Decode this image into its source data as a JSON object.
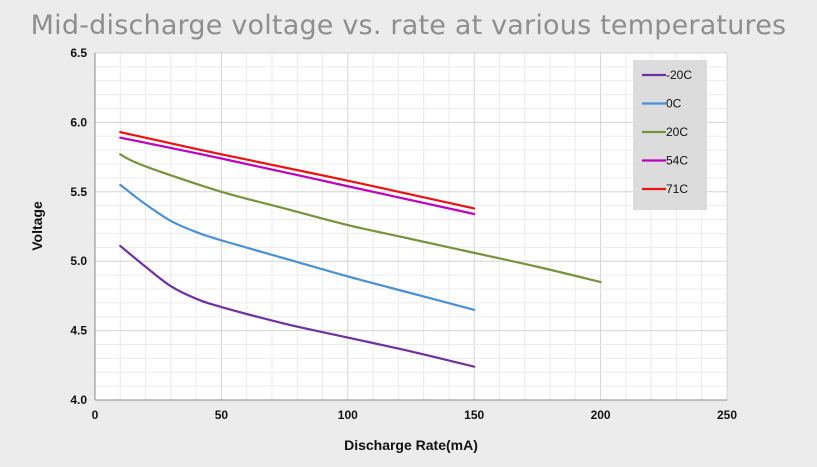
{
  "chart_data": {
    "type": "line",
    "title": "Mid-discharge voltage vs. rate at various temperatures",
    "xlabel": "Discharge Rate(mA)",
    "ylabel": "Voltage",
    "xlim": [
      0,
      250
    ],
    "ylim": [
      4.0,
      6.5
    ],
    "xticks": [
      0,
      50,
      100,
      150,
      200,
      250
    ],
    "yticks": [
      4.0,
      4.5,
      5.0,
      5.5,
      6.0,
      6.5
    ],
    "xtick_labels": [
      "0",
      "50",
      "100",
      "150",
      "200",
      "250"
    ],
    "ytick_labels": [
      "4.0",
      "4.5",
      "5.0",
      "5.5",
      "6.0",
      "6.5"
    ],
    "grid": true,
    "legend_position": "top-right",
    "series": [
      {
        "name": "-20C",
        "color": "#7030a0",
        "x": [
          10,
          20,
          30,
          40,
          50,
          75,
          100,
          125,
          150
        ],
        "y": [
          5.11,
          4.96,
          4.82,
          4.73,
          4.67,
          4.55,
          4.45,
          4.35,
          4.24
        ]
      },
      {
        "name": "0C",
        "color": "#4a90d9",
        "x": [
          10,
          20,
          30,
          40,
          50,
          75,
          100,
          125,
          150
        ],
        "y": [
          5.55,
          5.41,
          5.29,
          5.21,
          5.15,
          5.02,
          4.89,
          4.77,
          4.65
        ]
      },
      {
        "name": "20C",
        "color": "#77933c",
        "x": [
          10,
          15,
          25,
          50,
          75,
          100,
          125,
          150,
          175,
          200
        ],
        "y": [
          5.77,
          5.72,
          5.65,
          5.5,
          5.38,
          5.26,
          5.16,
          5.06,
          4.96,
          4.85
        ]
      },
      {
        "name": "54C",
        "color": "#c000c0",
        "x": [
          10,
          50,
          100,
          150
        ],
        "y": [
          5.89,
          5.74,
          5.54,
          5.34
        ]
      },
      {
        "name": "71C",
        "color": "#ee1111",
        "x": [
          10,
          50,
          100,
          150
        ],
        "y": [
          5.93,
          5.77,
          5.58,
          5.38
        ]
      }
    ]
  }
}
